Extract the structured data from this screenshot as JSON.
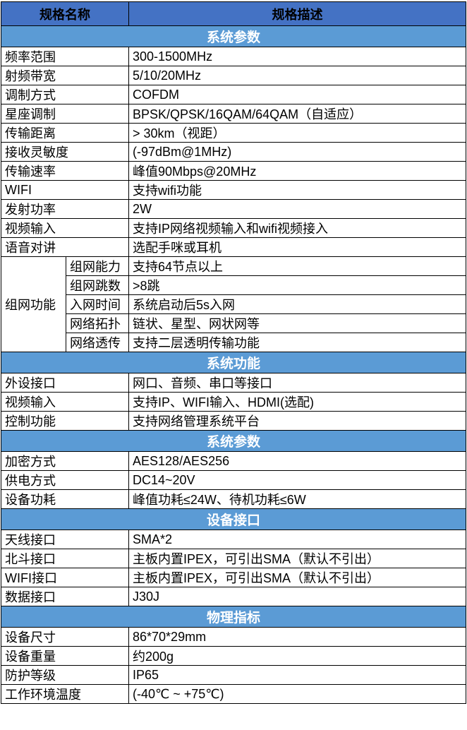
{
  "colors": {
    "header_bg": "#4472C4",
    "section_bg": "#5B9BD5",
    "header_text": "#ffffff",
    "body_text": "#000000",
    "border": "#000000"
  },
  "table": {
    "columns": {
      "name": "规格名称",
      "desc": "规格描述"
    },
    "sections": [
      {
        "title": "系统参数",
        "rows": [
          {
            "label": "频率范围",
            "value": "300-1500MHz"
          },
          {
            "label": "射频带宽",
            "value": "5/10/20MHz"
          },
          {
            "label": "调制方式",
            "value": "COFDM"
          },
          {
            "label": "星座调制",
            "value": "BPSK/QPSK/16QAM/64QAM（自适应）"
          },
          {
            "label": "传输距离",
            "value": "> 30km（视距）"
          },
          {
            "label": "接收灵敏度",
            "value": " (-97dBm@1MHz)"
          },
          {
            "label": "传输速率",
            "value": "峰值90Mbps@20MHz"
          },
          {
            "label": "WIFI",
            "value": "支持wifi功能"
          },
          {
            "label": "发射功率",
            "value": "2W"
          },
          {
            "label": "视频输入",
            "value": "支持IP网络视频输入和wifi视频接入"
          },
          {
            "label": "语音对讲",
            "value": "选配手咪或耳机"
          },
          {
            "group": "组网功能",
            "subrows": [
              {
                "label": "组网能力",
                "value": "支持64节点以上"
              },
              {
                "label": "组网跳数",
                "value": ">8跳"
              },
              {
                "label": "入网时间",
                "value": "系统启动后5s入网"
              },
              {
                "label": "网络拓扑",
                "value": "链状、星型、网状网等"
              },
              {
                "label": "网络透传",
                "value": "支持二层透明传输功能"
              }
            ]
          }
        ]
      },
      {
        "title": "系统功能",
        "rows": [
          {
            "label": "外设接口",
            "value": "网口、音频、串口等接口"
          },
          {
            "label": "视频输入",
            "value": "支持IP、WIFI输入、HDMI(选配)"
          },
          {
            "label": "控制功能",
            "value": "支持网络管理系统平台"
          }
        ]
      },
      {
        "title": "系统参数",
        "rows": [
          {
            "label": "加密方式",
            "value": "AES128/AES256"
          },
          {
            "label": "供电方式",
            "value": "DC14~20V"
          },
          {
            "label": "设备功耗",
            "value": "峰值功耗≤24W、待机功耗≤6W"
          }
        ]
      },
      {
        "title": "设备接口",
        "rows": [
          {
            "label": "天线接口",
            "value": "SMA*2"
          },
          {
            "label": "北斗接口",
            "value": "主板内置IPEX，可引出SMA（默认不引出）"
          },
          {
            "label": "WIFI接口",
            "value": "主板内置IPEX，可引出SMA（默认不引出）"
          },
          {
            "label": "数据接口",
            "value": "J30J"
          }
        ]
      },
      {
        "title": "物理指标",
        "rows": [
          {
            "label": "设备尺寸",
            "value": "86*70*29mm"
          },
          {
            "label": "设备重量",
            "value": "约200g"
          },
          {
            "label": "防护等级",
            "value": "IP65"
          },
          {
            "label": "工作环境温度",
            "value": " (-40℃ ~ +75℃)"
          }
        ]
      }
    ]
  }
}
